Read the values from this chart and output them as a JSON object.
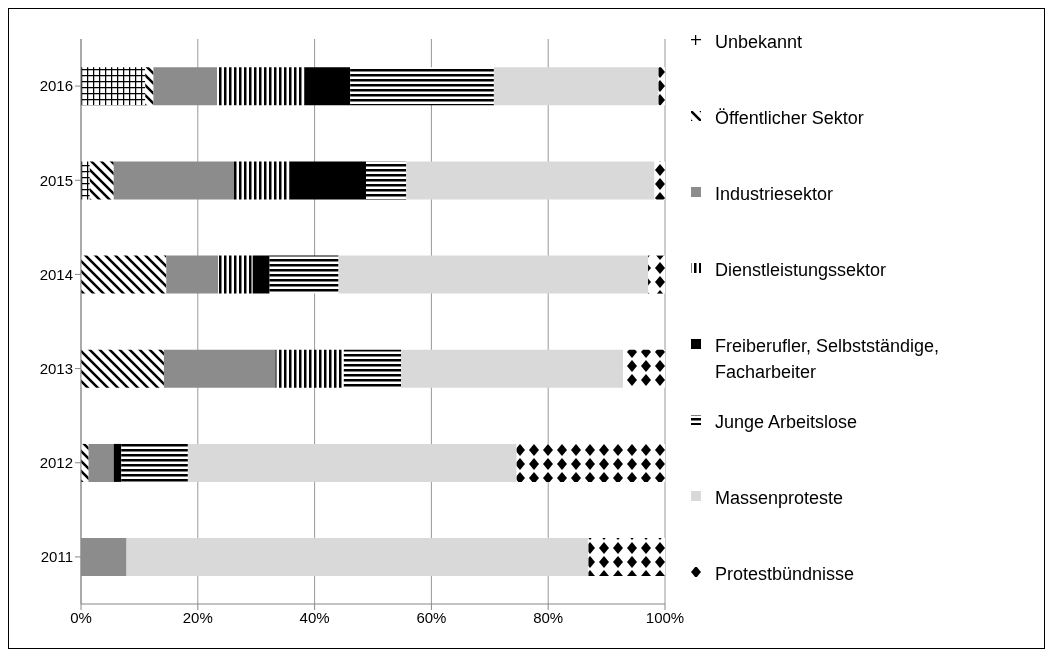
{
  "chart_data": {
    "type": "bar",
    "orientation": "horizontal",
    "stacked": true,
    "categories": [
      "2016",
      "2015",
      "2014",
      "2013",
      "2012",
      "2011"
    ],
    "series": [
      {
        "name": "Unbekannt",
        "color": "#000000",
        "values": [
          11.0,
          1.5,
          0,
          0,
          0,
          0
        ]
      },
      {
        "name": "Öffentlicher Sektor",
        "color": "#000000",
        "values": [
          1.4,
          4.1,
          14.6,
          14.2,
          1.3,
          0
        ]
      },
      {
        "name": "Industriesektor",
        "color": "#8c8c8c",
        "values": [
          10.9,
          20.6,
          8.9,
          19.1,
          4.3,
          7.8
        ]
      },
      {
        "name": "Dienstleistungssektor",
        "color": "#000000",
        "values": [
          15.0,
          9.5,
          5.9,
          11.7,
          0,
          0
        ]
      },
      {
        "name": "Freiberufler, Selbstständige, Facharbeiter",
        "color": "#000000",
        "values": [
          7.8,
          13.1,
          2.9,
          0,
          1.3,
          0
        ]
      },
      {
        "name": "Junge Arbeitslose",
        "color": "#000000",
        "values": [
          24.6,
          6.9,
          11.8,
          9.8,
          11.4,
          0
        ]
      },
      {
        "name": "Massenproteste",
        "color": "#d9d9d9",
        "values": [
          28.2,
          42.5,
          53.0,
          38.0,
          56.3,
          79.1
        ]
      },
      {
        "name": "Protestbündnisse",
        "color": "#000000",
        "values": [
          1.1,
          1.8,
          2.9,
          7.2,
          25.4,
          13.1
        ]
      }
    ],
    "xlim": [
      0,
      100
    ],
    "xticks": [
      {
        "value": 0,
        "label": "0%"
      },
      {
        "value": 20,
        "label": "20%"
      },
      {
        "value": 40,
        "label": "40%"
      },
      {
        "value": 60,
        "label": "60%"
      },
      {
        "value": 80,
        "label": "80%"
      },
      {
        "value": 100,
        "label": "100%"
      }
    ],
    "grid": "x",
    "legend": "right"
  }
}
